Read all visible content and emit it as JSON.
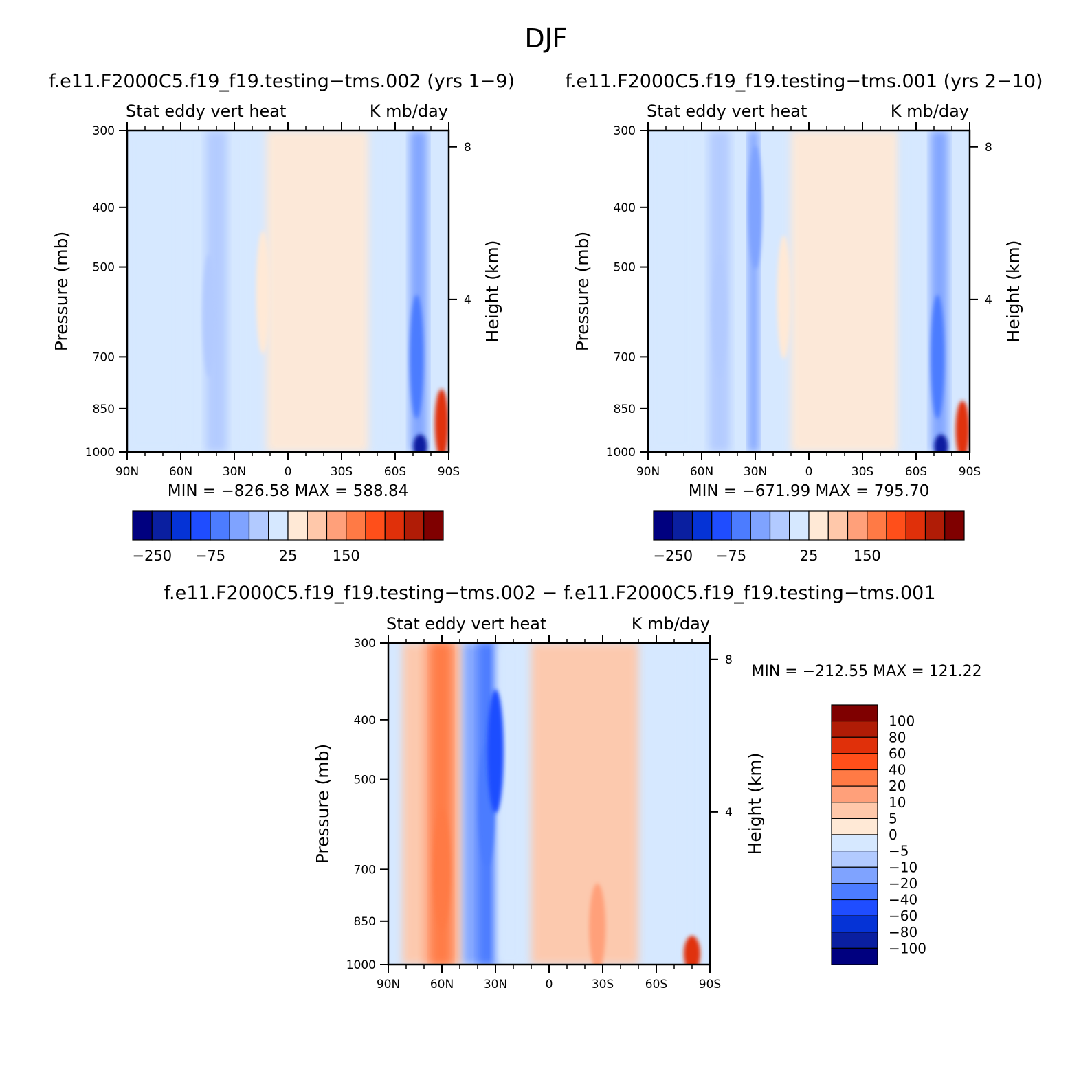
{
  "page": {
    "title": "DJF"
  },
  "colors": {
    "levels_main": [
      "#00007f",
      "#0a1fa0",
      "#0533d6",
      "#1f4dff",
      "#4c7cff",
      "#7fa3ff",
      "#b2caff",
      "#d6e8ff",
      "#ffe9d6",
      "#ffc8aa",
      "#ffa07a",
      "#ff7a45",
      "#ff4f1a",
      "#e0300a",
      "#b01c06",
      "#7f0000"
    ],
    "levels_diff": [
      "#00007f",
      "#0a1fa0",
      "#0533d6",
      "#1f4dff",
      "#4c7cff",
      "#7fa3ff",
      "#b2caff",
      "#d6e8ff",
      "#ffe9d6",
      "#ffc8aa",
      "#ffa07a",
      "#ff7a45",
      "#ff4f1a",
      "#e0300a",
      "#b01c06",
      "#7f0000"
    ]
  },
  "chart_data": [
    {
      "type": "heatmap",
      "title": "f.e11.F2000C5.f19_f19.testing−tms.002 (yrs 1−9)",
      "left_label": "Stat eddy vert heat",
      "right_label": "K mb/day",
      "ylabel": "Pressure (mb)",
      "right_axis_label": "Height (km)",
      "x_ticks": [
        "90N",
        "60N",
        "30N",
        "0",
        "30S",
        "60S",
        "90S"
      ],
      "y_ticks": [
        "300",
        "400",
        "500",
        "700",
        "850",
        "1000"
      ],
      "right_ticks": [
        "8",
        "4"
      ],
      "min_max": "MIN = −826.58   MAX = 588.84",
      "ylim": [
        1000,
        300
      ],
      "xlim": [
        90,
        -90
      ],
      "colorbar_labels": [
        "−250",
        "−75",
        "25",
        "150"
      ],
      "colorbar_orientation": "horizontal",
      "features": [
        {
          "lat": 44,
          "p": 600,
          "value": -40
        },
        {
          "lat": 14,
          "p": 550,
          "value": 10
        },
        {
          "lat": -72,
          "p": 700,
          "value": -100
        },
        {
          "lat": -74,
          "p": 980,
          "value": -250
        },
        {
          "lat": -86,
          "p": 900,
          "value": 150
        }
      ]
    },
    {
      "type": "heatmap",
      "title": "f.e11.F2000C5.f19_f19.testing−tms.001 (yrs 2−10)",
      "left_label": "Stat eddy vert heat",
      "right_label": "K mb/day",
      "ylabel": "Pressure (mb)",
      "right_axis_label": "Height (km)",
      "x_ticks": [
        "90N",
        "60N",
        "30N",
        "0",
        "30S",
        "60S",
        "90S"
      ],
      "y_ticks": [
        "300",
        "400",
        "500",
        "700",
        "850",
        "1000"
      ],
      "right_ticks": [
        "8",
        "4"
      ],
      "min_max": "MIN = −671.99   MAX = 795.70",
      "ylim": [
        1000,
        300
      ],
      "xlim": [
        90,
        -90
      ],
      "colorbar_labels": [
        "−250",
        "−75",
        "25",
        "150"
      ],
      "colorbar_orientation": "horizontal",
      "features": [
        {
          "lat": 50,
          "p": 600,
          "value": -40
        },
        {
          "lat": 30,
          "p": 400,
          "value": -60
        },
        {
          "lat": 14,
          "p": 560,
          "value": 10
        },
        {
          "lat": -72,
          "p": 700,
          "value": -100
        },
        {
          "lat": -74,
          "p": 980,
          "value": -250
        },
        {
          "lat": -86,
          "p": 920,
          "value": 150
        }
      ]
    },
    {
      "type": "heatmap",
      "title": "f.e11.F2000C5.f19_f19.testing−tms.002 − f.e11.F2000C5.f19_f19.testing−tms.001",
      "left_label": "Stat eddy vert heat",
      "right_label": "K mb/day",
      "ylabel": "Pressure (mb)",
      "right_axis_label": "Height (km)",
      "x_ticks": [
        "90N",
        "60N",
        "30N",
        "0",
        "30S",
        "60S",
        "90S"
      ],
      "y_ticks": [
        "300",
        "400",
        "500",
        "700",
        "850",
        "1000"
      ],
      "right_ticks": [
        "8",
        "4"
      ],
      "min_max": "MIN = −212.55   MAX = 121.22",
      "ylim": [
        1000,
        300
      ],
      "xlim": [
        90,
        -90
      ],
      "colorbar_labels": [
        "100",
        "80",
        "60",
        "40",
        "20",
        "10",
        "5",
        "0",
        "−5",
        "−10",
        "−20",
        "−40",
        "−60",
        "−80",
        "−100"
      ],
      "colorbar_orientation": "vertical",
      "features": [
        {
          "lat": 60,
          "p": 700,
          "value": 20
        },
        {
          "lat": 35,
          "p": 550,
          "value": -40
        },
        {
          "lat": 30,
          "p": 450,
          "value": -60
        },
        {
          "lat": -27,
          "p": 870,
          "value": 10
        },
        {
          "lat": -80,
          "p": 960,
          "value": 60
        }
      ]
    }
  ]
}
